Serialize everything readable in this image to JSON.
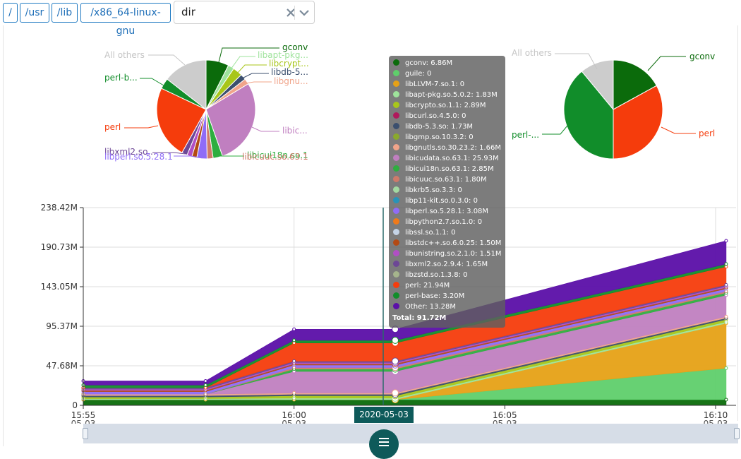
{
  "breadcrumb": {
    "items": [
      "/",
      "/usr",
      "/lib",
      "/x86_64-linux-gnu"
    ]
  },
  "filter": {
    "value": "dir"
  },
  "pie_left": {
    "labels": [
      "gconv",
      "libapt-pkg...",
      "libcrypt...",
      "libdb-5...",
      "libgnu...",
      "libic...",
      "libicui18n.so.1",
      "libicuuc.so.63.1",
      "libxml2.so...",
      "libperl.so.5.28.1",
      "perl",
      "perl-b...",
      "All others"
    ]
  },
  "pie_right": {
    "labels": [
      "gconv",
      "perl",
      "perl-...",
      "All others"
    ]
  },
  "tooltip": {
    "rows": [
      {
        "label": "gconv: 6.86M",
        "color": "#0b6b0b"
      },
      {
        "label": "guile: 0",
        "color": "#5fcf6b"
      },
      {
        "label": "libLLVM-7.so.1: 0",
        "color": "#e6a116"
      },
      {
        "label": "libapt-pkg.so.5.0.2: 1.83M",
        "color": "#9ee39b"
      },
      {
        "label": "libcrypto.so.1.1: 2.89M",
        "color": "#a8c61a"
      },
      {
        "label": "libcurl.so.4.5.0: 0",
        "color": "#b0195c"
      },
      {
        "label": "libdb-5.3.so: 1.73M",
        "color": "#3b4f6e"
      },
      {
        "label": "libgmp.so.10.3.2: 0",
        "color": "#8aa92c"
      },
      {
        "label": "libgnutls.so.30.23.2: 1.66M",
        "color": "#f0a48a"
      },
      {
        "label": "libicudata.so.63.1: 25.93M",
        "color": "#c07fc0"
      },
      {
        "label": "libicui18n.so.63.1: 2.85M",
        "color": "#2eae3f"
      },
      {
        "label": "libicuuc.so.63.1: 1.80M",
        "color": "#cf7a6a"
      },
      {
        "label": "libkrb5.so.3.3: 0",
        "color": "#a3d9a1"
      },
      {
        "label": "libp11-kit.so.0.3.0: 0",
        "color": "#2893b8"
      },
      {
        "label": "libperl.so.5.28.1: 3.08M",
        "color": "#8f6cf7"
      },
      {
        "label": "libpython2.7.so.1.0: 0",
        "color": "#f07a1a"
      },
      {
        "label": "libssl.so.1.1: 0",
        "color": "#c4d3e6"
      },
      {
        "label": "libstdc++.so.6.0.25: 1.50M",
        "color": "#b34a14"
      },
      {
        "label": "libunistring.so.2.1.0: 1.51M",
        "color": "#b14fc4"
      },
      {
        "label": "libxml2.so.2.9.4: 1.65M",
        "color": "#6d4796"
      },
      {
        "label": "libzstd.so.1.3.8: 0",
        "color": "#a5b58c"
      },
      {
        "label": "perl: 21.94M",
        "color": "#f53c0c"
      },
      {
        "label": "perl-base: 3.20M",
        "color": "#118d2a"
      },
      {
        "label": "Other: 13.28M",
        "color": "#5b0fa8"
      }
    ],
    "total": "Total: 91.72M"
  },
  "chart_data": [
    {
      "type": "pie",
      "categories": [
        "gconv",
        "libapt-pkg",
        "libcrypto",
        "libdb-5.3",
        "libgnutls",
        "libicudata",
        "libicui18n",
        "libicuuc",
        "libperl",
        "libstdc++",
        "libunistring",
        "libxml2",
        "perl",
        "perl-base",
        "All others"
      ],
      "values": [
        6.86,
        1.83,
        2.89,
        1.73,
        1.66,
        25.93,
        2.85,
        1.8,
        3.08,
        1.5,
        1.51,
        1.65,
        21.94,
        3.2,
        13.28
      ],
      "colors": [
        "#0b6b0b",
        "#9ee39b",
        "#a8c61a",
        "#3b4f6e",
        "#f0a48a",
        "#c07fc0",
        "#2eae3f",
        "#cf7a6a",
        "#8f6cf7",
        "#b34a14",
        "#b14fc4",
        "#6d4796",
        "#f53c0c",
        "#118d2a",
        "#cccccc"
      ]
    },
    {
      "type": "pie",
      "categories": [
        "gconv",
        "perl",
        "perl-base",
        "All others"
      ],
      "values": [
        17,
        33,
        39,
        11
      ],
      "colors": [
        "#0b6b0b",
        "#f53c0c",
        "#118d2a",
        "#cccccc"
      ]
    },
    {
      "type": "area",
      "stacked": true,
      "x": [
        "15:55",
        "15:57",
        "16:00",
        "16:02",
        "16:11"
      ],
      "x_ticks": [
        {
          "time": "15:55",
          "date": "05-03"
        },
        {
          "time": "16:00",
          "date": "05-03"
        },
        {
          "time": "16:05",
          "date": "05-03"
        },
        {
          "time": "16:10",
          "date": "05-03"
        }
      ],
      "y_ticks": [
        "0",
        "47.68M",
        "95.37M",
        "143.05M",
        "190.73M",
        "238.42M"
      ],
      "ylim": [
        0,
        238.42
      ],
      "grid": true,
      "series": [
        {
          "name": "gconv",
          "color": "#0b6b0b",
          "values": [
            6.86,
            6.86,
            6.86,
            6.86,
            6.86
          ]
        },
        {
          "name": "guile",
          "color": "#5fcf6b",
          "values": [
            0,
            0,
            0,
            0,
            38
          ]
        },
        {
          "name": "libLLVM-7.so.1",
          "color": "#e6a116",
          "values": [
            0,
            0,
            0,
            0,
            54
          ]
        },
        {
          "name": "libapt-pkg.so.5.0.2",
          "color": "#9ee39b",
          "values": [
            1.2,
            1.2,
            1.83,
            1.83,
            1.83
          ]
        },
        {
          "name": "libcrypto.so.1.1",
          "color": "#a8c61a",
          "values": [
            2.0,
            2.0,
            2.89,
            2.89,
            2.89
          ]
        },
        {
          "name": "libdb-5.3.so",
          "color": "#3b4f6e",
          "values": [
            1.73,
            1.73,
            1.73,
            1.73,
            1.73
          ]
        },
        {
          "name": "libgnutls.so.30.23.2",
          "color": "#f0a48a",
          "values": [
            1.66,
            1.66,
            1.66,
            1.66,
            1.66
          ]
        },
        {
          "name": "libicudata.so.63.1",
          "color": "#c07fc0",
          "values": [
            0,
            0,
            25.93,
            25.93,
            25.93
          ]
        },
        {
          "name": "libicui18n.so.63.1",
          "color": "#2eae3f",
          "values": [
            0,
            0,
            2.85,
            2.85,
            2.85
          ]
        },
        {
          "name": "libicuuc.so.63.1",
          "color": "#cf7a6a",
          "values": [
            0,
            0,
            1.8,
            1.8,
            1.8
          ]
        },
        {
          "name": "libperl.so.5.28.1",
          "color": "#8f6cf7",
          "values": [
            3.08,
            3.08,
            3.08,
            3.08,
            3.08
          ]
        },
        {
          "name": "libstdc++.so.6.0.25",
          "color": "#b34a14",
          "values": [
            1.5,
            1.5,
            1.5,
            1.5,
            1.5
          ]
        },
        {
          "name": "libunistring.so.2.1.0",
          "color": "#b14fc4",
          "values": [
            1.51,
            1.51,
            1.51,
            1.51,
            1.51
          ]
        },
        {
          "name": "libxml2.so.2.9.4",
          "color": "#6d4796",
          "values": [
            1.65,
            1.65,
            1.65,
            1.65,
            1.65
          ]
        },
        {
          "name": "perl",
          "color": "#f53c0c",
          "values": [
            0,
            0,
            21.94,
            21.94,
            21.94
          ]
        },
        {
          "name": "perl-base",
          "color": "#118d2a",
          "values": [
            3.2,
            3.2,
            3.2,
            3.2,
            3.2
          ]
        },
        {
          "name": "Other",
          "color": "#5b0fa8",
          "values": [
            5.0,
            5.0,
            13.28,
            13.28,
            28
          ]
        }
      ],
      "cursor_label": "2020-05-03"
    }
  ]
}
